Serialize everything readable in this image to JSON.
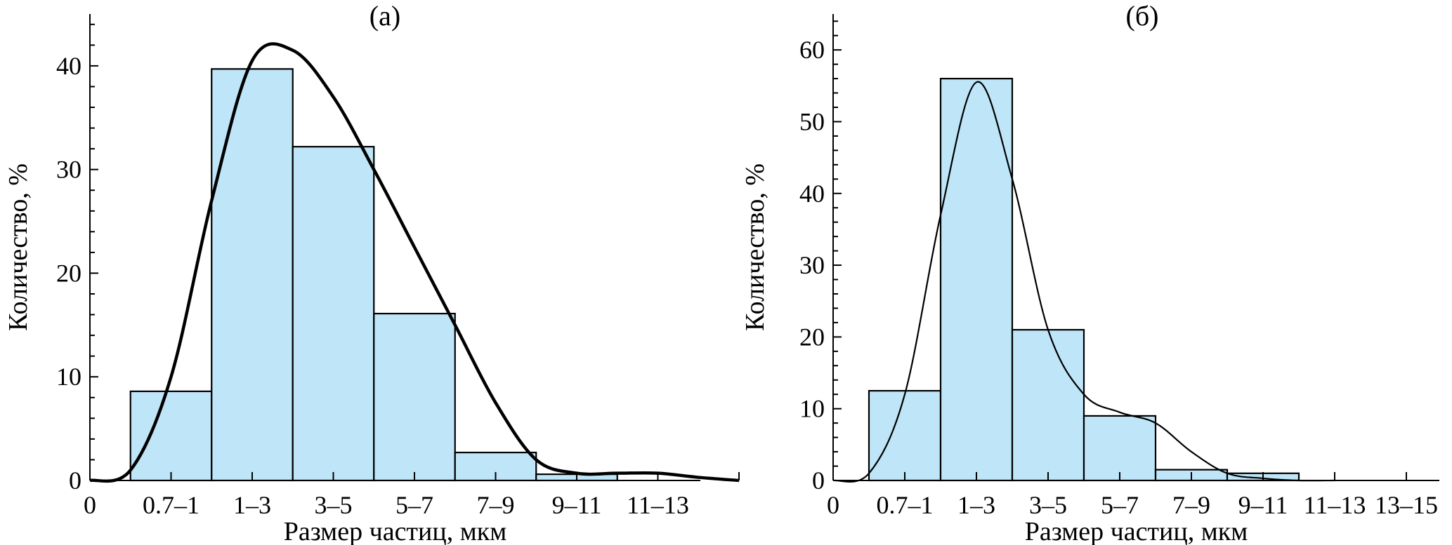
{
  "chart_data": [
    {
      "type": "bar",
      "title": "(а)",
      "xlabel": "Размер частиц, мкм",
      "ylabel": "Количество, %",
      "x_tick_labels": [
        "0",
        "0.7–1",
        "1–3",
        "3–5",
        "5–7",
        "7–9",
        "9–11",
        "11–13"
      ],
      "categories": [
        "0.7–1",
        "1–3",
        "3–5",
        "5–7",
        "7–9",
        "9–11",
        "11–13"
      ],
      "values": [
        8.6,
        39.7,
        32.2,
        16.1,
        2.7,
        0.6,
        0
      ],
      "y_ticks": [
        "0",
        "10",
        "20",
        "30",
        "40"
      ],
      "ylim": [
        0,
        45
      ],
      "bar_color": "#bfe5f8",
      "curve": {
        "x": [
          0,
          0.5,
          1,
          1.5,
          2,
          2.5,
          3,
          3.5,
          4,
          4.5,
          5,
          5.5,
          6,
          6.5,
          7,
          7.5,
          8
        ],
        "y": [
          0,
          1,
          10,
          27,
          40.5,
          41.5,
          37,
          30,
          22.5,
          15,
          7.5,
          2,
          0.7,
          0.7,
          0.7,
          0.3,
          0
        ]
      }
    },
    {
      "type": "bar",
      "title": "(б)",
      "xlabel": "Размер частиц, мкм",
      "ylabel": "Количество, %",
      "x_tick_labels": [
        "0",
        "0.7–1",
        "1–3",
        "3–5",
        "5–7",
        "7–9",
        "9–11",
        "11–13",
        "13–15"
      ],
      "categories": [
        "0.7–1",
        "1–3",
        "3–5",
        "5–7",
        "7–9",
        "9–11",
        "11–13",
        "13–15"
      ],
      "values": [
        12.5,
        56,
        21,
        9,
        1.5,
        1,
        0,
        0
      ],
      "y_ticks": [
        "0",
        "10",
        "20",
        "30",
        "40",
        "50",
        "60"
      ],
      "ylim": [
        0,
        65
      ],
      "bar_color": "#bfe5f8",
      "curve": {
        "x": [
          0,
          0.5,
          1,
          1.5,
          2,
          2.5,
          3,
          3.5,
          4,
          4.5,
          5,
          5.5,
          6,
          6.5,
          7
        ],
        "y": [
          0,
          1,
          12,
          37,
          55.5,
          42,
          21,
          12,
          9.5,
          8,
          4,
          1,
          0.3,
          0,
          0
        ]
      }
    }
  ]
}
